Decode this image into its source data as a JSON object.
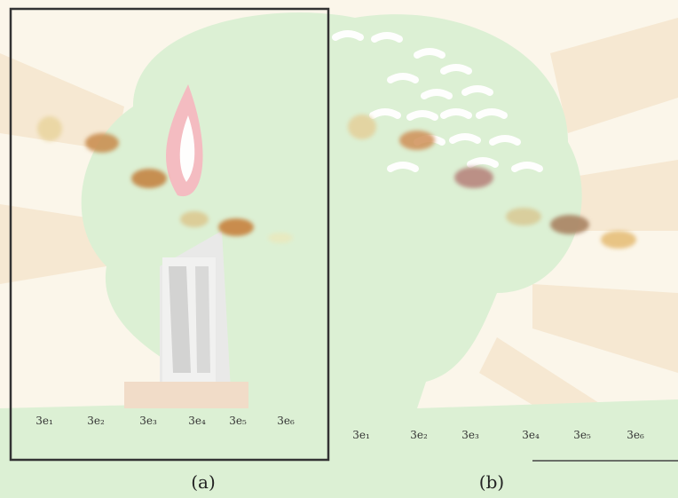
{
  "panels": [
    {
      "caption": "(a)",
      "lanes": [
        "3e₁",
        "3e₂",
        "3e₃",
        "3e₄",
        "3e₅",
        "3e₆"
      ]
    },
    {
      "caption": "(b)",
      "lanes": [
        "3e₁",
        "3e₂",
        "3e₃",
        "3e₄",
        "3e₅",
        "3e₆"
      ]
    }
  ]
}
